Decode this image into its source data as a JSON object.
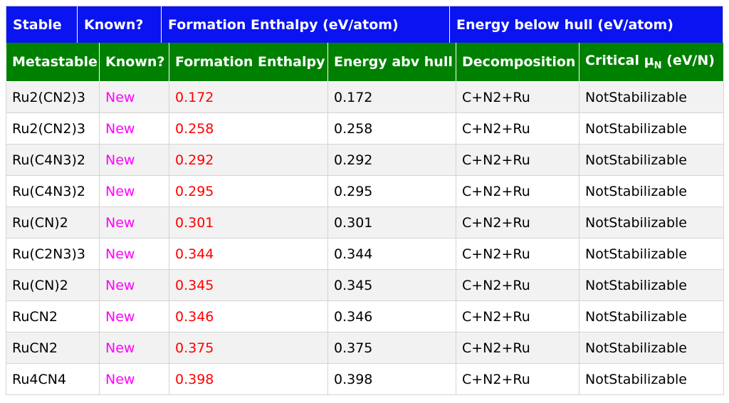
{
  "stable_header": {
    "col1": "Stable",
    "col2": "Known?",
    "col3": "Formation Enthalpy (eV/atom)",
    "col4": "Energy below hull (eV/atom)"
  },
  "metastable_header": {
    "col1": "Metastable",
    "col2": "Known?",
    "col3": "Formation Enthalpy",
    "col4": "Energy abv hull",
    "col5": "Decomposition",
    "col6_prefix": "Critical μ",
    "col6_sub": "N",
    "col6_suffix": " (eV/N)"
  },
  "rows": [
    {
      "formula": "Ru2(CN2)3",
      "known": "New",
      "formation": "0.172",
      "above_hull": "0.172",
      "decomposition": "C+N2+Ru",
      "critical": "NotStabilizable"
    },
    {
      "formula": "Ru2(CN2)3",
      "known": "New",
      "formation": "0.258",
      "above_hull": "0.258",
      "decomposition": "C+N2+Ru",
      "critical": "NotStabilizable"
    },
    {
      "formula": "Ru(C4N3)2",
      "known": "New",
      "formation": "0.292",
      "above_hull": "0.292",
      "decomposition": "C+N2+Ru",
      "critical": "NotStabilizable"
    },
    {
      "formula": "Ru(C4N3)2",
      "known": "New",
      "formation": "0.295",
      "above_hull": "0.295",
      "decomposition": "C+N2+Ru",
      "critical": "NotStabilizable"
    },
    {
      "formula": "Ru(CN)2",
      "known": "New",
      "formation": "0.301",
      "above_hull": "0.301",
      "decomposition": "C+N2+Ru",
      "critical": "NotStabilizable"
    },
    {
      "formula": "Ru(C2N3)3",
      "known": "New",
      "formation": "0.344",
      "above_hull": "0.344",
      "decomposition": "C+N2+Ru",
      "critical": "NotStabilizable"
    },
    {
      "formula": "Ru(CN)2",
      "known": "New",
      "formation": "0.345",
      "above_hull": "0.345",
      "decomposition": "C+N2+Ru",
      "critical": "NotStabilizable"
    },
    {
      "formula": "RuCN2",
      "known": "New",
      "formation": "0.346",
      "above_hull": "0.346",
      "decomposition": "C+N2+Ru",
      "critical": "NotStabilizable"
    },
    {
      "formula": "RuCN2",
      "known": "New",
      "formation": "0.375",
      "above_hull": "0.375",
      "decomposition": "C+N2+Ru",
      "critical": "NotStabilizable"
    },
    {
      "formula": "Ru4CN4",
      "known": "New",
      "formation": "0.398",
      "above_hull": "0.398",
      "decomposition": "C+N2+Ru",
      "critical": "NotStabilizable"
    }
  ],
  "colors": {
    "stable_header_bg": "#0a14f0",
    "metastable_header_bg": "#008000",
    "known_text": "#ff00ff",
    "formation_text": "#ff0000"
  }
}
